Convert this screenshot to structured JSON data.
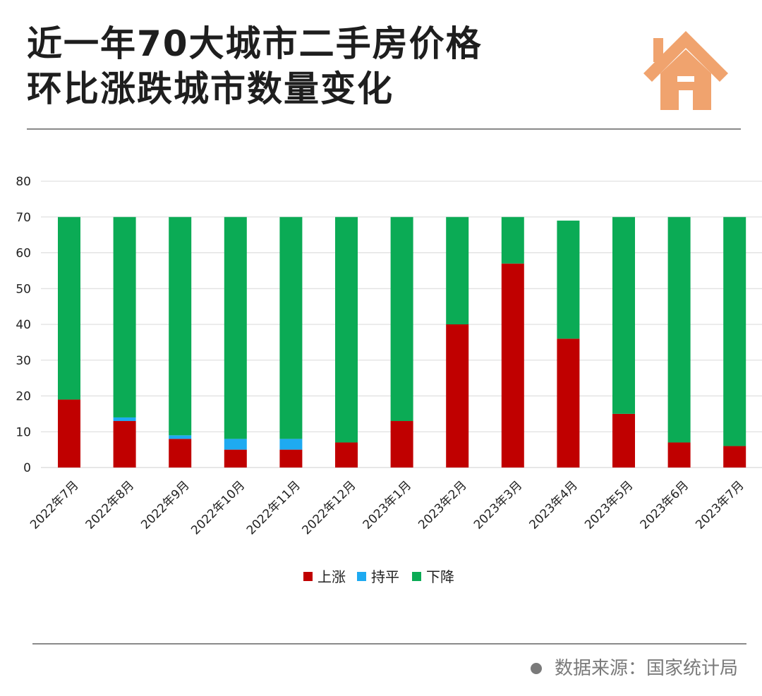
{
  "title": {
    "line1": "近一年70大城市二手房价格",
    "line2": "环比涨跌城市数量变化"
  },
  "icon": "house-icon",
  "source": "数据来源：国家统计局",
  "colors": {
    "rise": "#c00000",
    "flat": "#1eaaf1",
    "fall": "#0bab55",
    "icon": "#f0a36e"
  },
  "chart_data": {
    "type": "bar",
    "stacked": true,
    "categories": [
      "2022年7月",
      "2022年8月",
      "2022年9月",
      "2022年10月",
      "2022年11月",
      "2022年12月",
      "2023年1月",
      "2023年2月",
      "2023年3月",
      "2023年4月",
      "2023年5月",
      "2023年6月",
      "2023年7月"
    ],
    "series": [
      {
        "name": "上涨",
        "color": "#c00000",
        "values": [
          19,
          13,
          8,
          5,
          5,
          7,
          13,
          40,
          57,
          36,
          15,
          7,
          6
        ]
      },
      {
        "name": "持平",
        "color": "#1eaaf1",
        "values": [
          0,
          1,
          1,
          3,
          3,
          0,
          0,
          0,
          0,
          0,
          0,
          0,
          0
        ]
      },
      {
        "name": "下降",
        "color": "#0bab55",
        "values": [
          51,
          56,
          61,
          62,
          62,
          63,
          57,
          30,
          13,
          33,
          55,
          63,
          64
        ]
      }
    ],
    "ylim": [
      0,
      80
    ],
    "yticks": [
      0,
      10,
      20,
      30,
      40,
      50,
      60,
      70,
      80
    ],
    "grid": true,
    "legend": "bottom-center"
  }
}
